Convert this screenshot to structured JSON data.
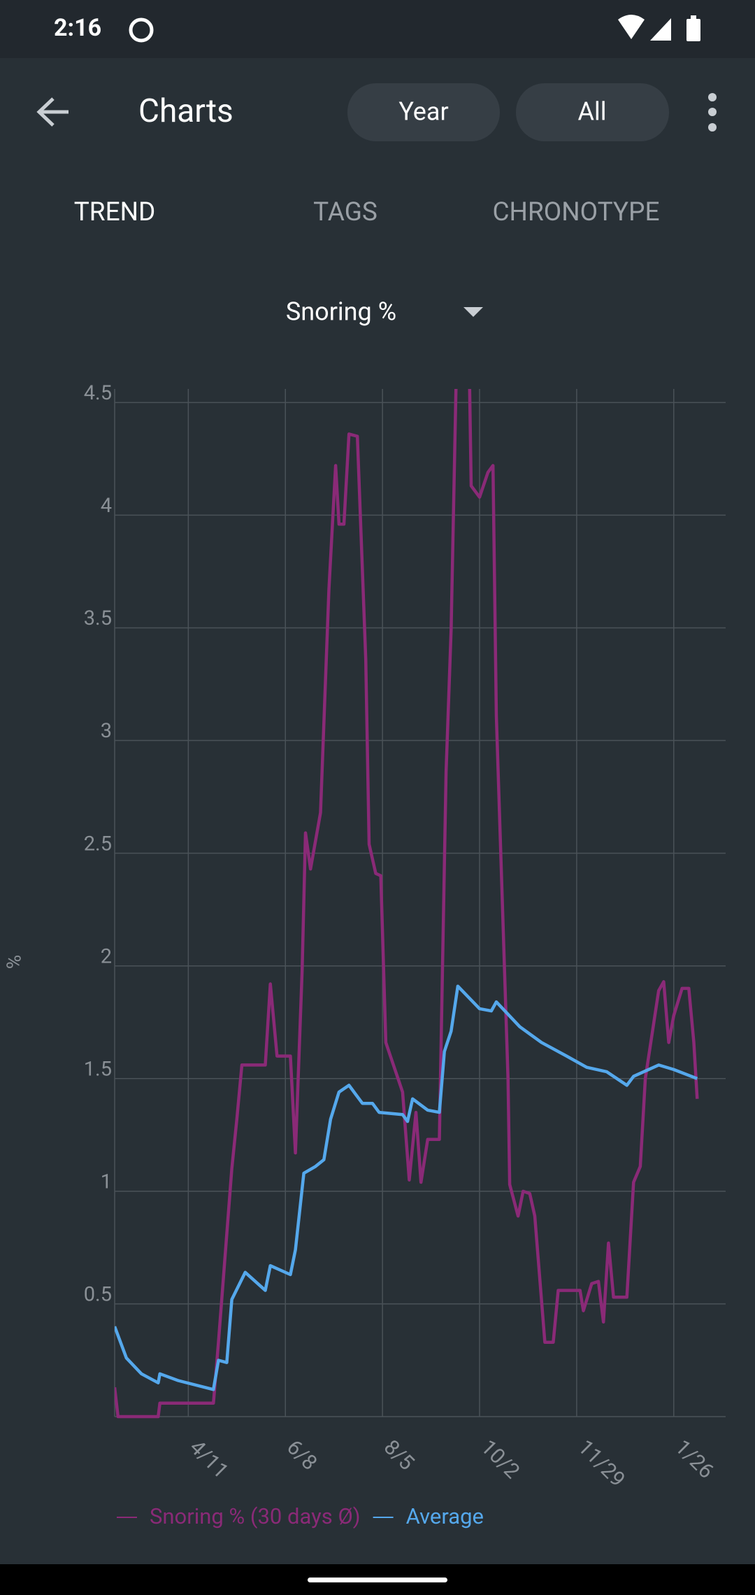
{
  "status_bar": {
    "time": "2:16"
  },
  "app_bar": {
    "title": "Charts",
    "filters": [
      "Year",
      "All"
    ]
  },
  "tabs": [
    "TREND",
    "TAGS",
    "CHRONOTYPE"
  ],
  "metric_selector": "Snoring %",
  "chart_data": {
    "type": "line",
    "y_label": "%",
    "xlim": [
      "2/26",
      "2/26"
    ],
    "xticks": [
      "4/11",
      "6/8",
      "8/5",
      "10/2",
      "11/29",
      "1/26"
    ],
    "ylim": [
      0,
      4.56
    ],
    "yticks": [
      0.5,
      1,
      1.5,
      2,
      2.5,
      3,
      3.5,
      4,
      4.5
    ],
    "grid": true,
    "series": [
      {
        "name": "Snoring % (30 days Ø)",
        "color": "#8a2a77",
        "x": [
          "2/26",
          "2/28",
          "3/24",
          "3/25",
          "4/26",
          "4/29",
          "5/7",
          "5/10",
          "5/13",
          "5/27",
          "5/30",
          "6/3",
          "6/11",
          "6/14",
          "6/18",
          "6/20",
          "6/23",
          "6/29",
          "7/4",
          "7/8",
          "7/10",
          "7/13",
          "7/16",
          "7/21",
          "7/26",
          "7/28",
          "8/1",
          "8/4",
          "8/7",
          "8/17",
          "8/21",
          "8/25",
          "8/28",
          "9/1",
          "9/8",
          "9/12",
          "9/15",
          "9/18",
          "9/26",
          "9/27",
          "10/2",
          "10/7",
          "10/10",
          "10/12",
          "10/19",
          "10/20",
          "10/25",
          "10/28",
          "11/1",
          "11/4",
          "11/10",
          "11/15",
          "11/18",
          "12/1",
          "12/3",
          "12/8",
          "12/12",
          "12/15",
          "12/18",
          "12/21",
          "12/29",
          "1/2",
          "1/6",
          "1/9",
          "1/17",
          "1/20",
          "1/23",
          "1/26",
          "1/31",
          "2/4",
          "2/7",
          "2/9"
        ],
        "values": [
          0.13,
          0,
          0,
          0.06,
          0.06,
          0.33,
          1.1,
          1.32,
          1.56,
          1.56,
          1.92,
          1.6,
          1.6,
          1.17,
          1.98,
          2.59,
          2.43,
          2.68,
          3.67,
          4.22,
          3.96,
          3.96,
          4.36,
          4.35,
          3.36,
          2.54,
          2.41,
          2.4,
          1.66,
          1.44,
          1.05,
          1.35,
          1.04,
          1.23,
          1.23,
          2.86,
          3.49,
          4.6,
          4.6,
          4.13,
          4.08,
          4.19,
          4.22,
          3.11,
          1.5,
          1.03,
          0.89,
          1.0,
          0.99,
          0.89,
          0.33,
          0.33,
          0.56,
          0.56,
          0.47,
          0.59,
          0.6,
          0.42,
          0.77,
          0.53,
          0.53,
          1.04,
          1.11,
          1.5,
          1.89,
          1.93,
          1.66,
          1.78,
          1.9,
          1.9,
          1.66,
          1.41
        ]
      },
      {
        "name": "Average",
        "color": "#55a8ec",
        "x": [
          "2/26",
          "3/5",
          "3/14",
          "3/24",
          "3/25",
          "4/5",
          "4/26",
          "4/29",
          "5/4",
          "5/7",
          "5/15",
          "5/27",
          "5/30",
          "6/11",
          "6/14",
          "6/19",
          "6/26",
          "7/1",
          "7/5",
          "7/10",
          "7/16",
          "7/24",
          "7/30",
          "8/3",
          "8/17",
          "8/20",
          "8/23",
          "9/1",
          "9/8",
          "9/11",
          "9/15",
          "9/19",
          "10/2",
          "10/9",
          "10/12",
          "10/26",
          "11/8",
          "11/23",
          "12/5",
          "12/17",
          "12/29",
          "1/2",
          "1/17",
          "1/26",
          "2/9"
        ],
        "values": [
          0.4,
          0.26,
          0.19,
          0.15,
          0.19,
          0.16,
          0.12,
          0.25,
          0.24,
          0.52,
          0.64,
          0.56,
          0.67,
          0.63,
          0.74,
          1.08,
          1.11,
          1.14,
          1.32,
          1.44,
          1.47,
          1.39,
          1.39,
          1.35,
          1.34,
          1.31,
          1.41,
          1.36,
          1.35,
          1.62,
          1.71,
          1.91,
          1.81,
          1.8,
          1.84,
          1.73,
          1.66,
          1.6,
          1.55,
          1.53,
          1.47,
          1.51,
          1.56,
          1.54,
          1.5
        ]
      }
    ]
  }
}
